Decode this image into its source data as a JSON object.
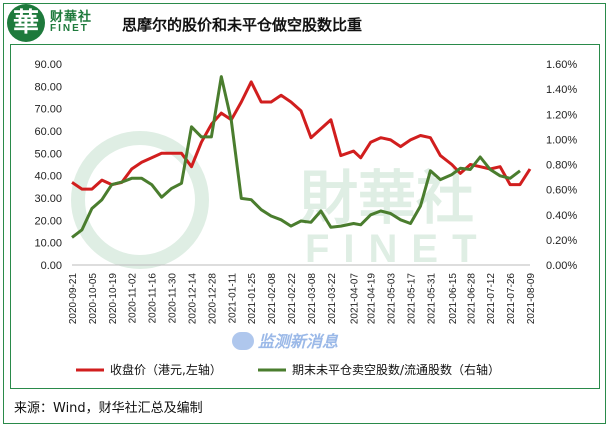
{
  "header": {
    "logo_char": "華",
    "logo_cn": "财華社",
    "logo_en": "FINET",
    "title": "思摩尔的股价和未平仓做空股数比重"
  },
  "watermark": {
    "cn": "財華社",
    "en": "FINET",
    "source_badge": "监测新消息"
  },
  "source": "来源：Wind，财华社汇总及编制",
  "colors": {
    "price": "#d11e1e",
    "short": "#4a7d2e",
    "border": "#2a8a4a",
    "watermark": "#dfeee4"
  },
  "chart_data": {
    "type": "line",
    "x": [
      "2020-09-21",
      "2020-10-05",
      "2020-10-19",
      "2020-11-02",
      "2020-11-16",
      "2020-11-30",
      "2020-12-14",
      "2020-12-28",
      "2021-01-11",
      "2021-01-25",
      "2021-02-08",
      "2021-02-22",
      "2021-03-08",
      "2021-03-22",
      "2021-04-07",
      "2021-04-19",
      "2021-05-03",
      "2021-05-17",
      "2021-05-31",
      "2021-06-15",
      "2021-06-28",
      "2021-07-12",
      "2021-07-26",
      "2021-08-09"
    ],
    "y_left_ticks": [
      "0.00",
      "10.00",
      "20.00",
      "30.00",
      "40.00",
      "50.00",
      "60.00",
      "70.00",
      "80.00",
      "90.00"
    ],
    "y_right_ticks": [
      "0.00%",
      "0.20%",
      "0.40%",
      "0.60%",
      "0.80%",
      "1.00%",
      "1.20%",
      "1.40%",
      "1.60%"
    ],
    "ylim_left": [
      0,
      90
    ],
    "ylim_right": [
      0,
      1.6
    ],
    "grid": false,
    "legend_position": "bottom",
    "series": [
      {
        "name": "收盘价（港元,左轴）",
        "axis": "left",
        "points": [
          {
            "x": "2020-09-21",
            "y": 37
          },
          {
            "x": "2020-09-28",
            "y": 34
          },
          {
            "x": "2020-10-05",
            "y": 34
          },
          {
            "x": "2020-10-12",
            "y": 38
          },
          {
            "x": "2020-10-19",
            "y": 36
          },
          {
            "x": "2020-10-26",
            "y": 37
          },
          {
            "x": "2020-11-02",
            "y": 43
          },
          {
            "x": "2020-11-09",
            "y": 46
          },
          {
            "x": "2020-11-16",
            "y": 48
          },
          {
            "x": "2020-11-23",
            "y": 50
          },
          {
            "x": "2020-11-30",
            "y": 50
          },
          {
            "x": "2020-12-07",
            "y": 50
          },
          {
            "x": "2020-12-14",
            "y": 44
          },
          {
            "x": "2020-12-21",
            "y": 55
          },
          {
            "x": "2020-12-28",
            "y": 63
          },
          {
            "x": "2021-01-04",
            "y": 68
          },
          {
            "x": "2021-01-11",
            "y": 65
          },
          {
            "x": "2021-01-18",
            "y": 73
          },
          {
            "x": "2021-01-25",
            "y": 82
          },
          {
            "x": "2021-02-01",
            "y": 73
          },
          {
            "x": "2021-02-08",
            "y": 73
          },
          {
            "x": "2021-02-15",
            "y": 76
          },
          {
            "x": "2021-02-22",
            "y": 73
          },
          {
            "x": "2021-03-01",
            "y": 69
          },
          {
            "x": "2021-03-08",
            "y": 57
          },
          {
            "x": "2021-03-15",
            "y": 61
          },
          {
            "x": "2021-03-22",
            "y": 65
          },
          {
            "x": "2021-03-29",
            "y": 49
          },
          {
            "x": "2021-04-07",
            "y": 51
          },
          {
            "x": "2021-04-12",
            "y": 48
          },
          {
            "x": "2021-04-19",
            "y": 55
          },
          {
            "x": "2021-04-26",
            "y": 57
          },
          {
            "x": "2021-05-03",
            "y": 56
          },
          {
            "x": "2021-05-10",
            "y": 53
          },
          {
            "x": "2021-05-17",
            "y": 56
          },
          {
            "x": "2021-05-24",
            "y": 58
          },
          {
            "x": "2021-05-31",
            "y": 57
          },
          {
            "x": "2021-06-07",
            "y": 49
          },
          {
            "x": "2021-06-15",
            "y": 45
          },
          {
            "x": "2021-06-21",
            "y": 41
          },
          {
            "x": "2021-06-28",
            "y": 45
          },
          {
            "x": "2021-07-05",
            "y": 44
          },
          {
            "x": "2021-07-12",
            "y": 43
          },
          {
            "x": "2021-07-19",
            "y": 44
          },
          {
            "x": "2021-07-26",
            "y": 36
          },
          {
            "x": "2021-08-02",
            "y": 36
          },
          {
            "x": "2021-08-09",
            "y": 43
          }
        ]
      },
      {
        "name": "期末未平仓卖空股数/流通股数（右轴）",
        "axis": "right",
        "points": [
          {
            "x": "2020-09-21",
            "y": 0.22
          },
          {
            "x": "2020-09-28",
            "y": 0.28
          },
          {
            "x": "2020-10-05",
            "y": 0.45
          },
          {
            "x": "2020-10-12",
            "y": 0.52
          },
          {
            "x": "2020-10-19",
            "y": 0.64
          },
          {
            "x": "2020-10-26",
            "y": 0.66
          },
          {
            "x": "2020-11-02",
            "y": 0.69
          },
          {
            "x": "2020-11-09",
            "y": 0.69
          },
          {
            "x": "2020-11-16",
            "y": 0.64
          },
          {
            "x": "2020-11-23",
            "y": 0.54
          },
          {
            "x": "2020-11-30",
            "y": 0.61
          },
          {
            "x": "2020-12-07",
            "y": 0.65
          },
          {
            "x": "2020-12-14",
            "y": 1.1
          },
          {
            "x": "2020-12-21",
            "y": 1.02
          },
          {
            "x": "2020-12-28",
            "y": 1.02
          },
          {
            "x": "2021-01-04",
            "y": 1.5
          },
          {
            "x": "2021-01-11",
            "y": 1.15
          },
          {
            "x": "2021-01-18",
            "y": 0.53
          },
          {
            "x": "2021-01-25",
            "y": 0.52
          },
          {
            "x": "2021-02-01",
            "y": 0.44
          },
          {
            "x": "2021-02-08",
            "y": 0.39
          },
          {
            "x": "2021-02-15",
            "y": 0.36
          },
          {
            "x": "2021-02-22",
            "y": 0.31
          },
          {
            "x": "2021-03-01",
            "y": 0.35
          },
          {
            "x": "2021-03-08",
            "y": 0.34
          },
          {
            "x": "2021-03-15",
            "y": 0.43
          },
          {
            "x": "2021-03-22",
            "y": 0.3
          },
          {
            "x": "2021-03-29",
            "y": 0.31
          },
          {
            "x": "2021-04-07",
            "y": 0.33
          },
          {
            "x": "2021-04-12",
            "y": 0.32
          },
          {
            "x": "2021-04-19",
            "y": 0.4
          },
          {
            "x": "2021-04-26",
            "y": 0.43
          },
          {
            "x": "2021-05-03",
            "y": 0.41
          },
          {
            "x": "2021-05-10",
            "y": 0.36
          },
          {
            "x": "2021-05-17",
            "y": 0.33
          },
          {
            "x": "2021-05-24",
            "y": 0.47
          },
          {
            "x": "2021-05-31",
            "y": 0.75
          },
          {
            "x": "2021-06-07",
            "y": 0.68
          },
          {
            "x": "2021-06-15",
            "y": 0.72
          },
          {
            "x": "2021-06-21",
            "y": 0.77
          },
          {
            "x": "2021-06-28",
            "y": 0.76
          },
          {
            "x": "2021-07-05",
            "y": 0.86
          },
          {
            "x": "2021-07-12",
            "y": 0.76
          },
          {
            "x": "2021-07-19",
            "y": 0.71
          },
          {
            "x": "2021-07-26",
            "y": 0.69
          },
          {
            "x": "2021-08-02",
            "y": 0.75
          }
        ]
      }
    ]
  }
}
